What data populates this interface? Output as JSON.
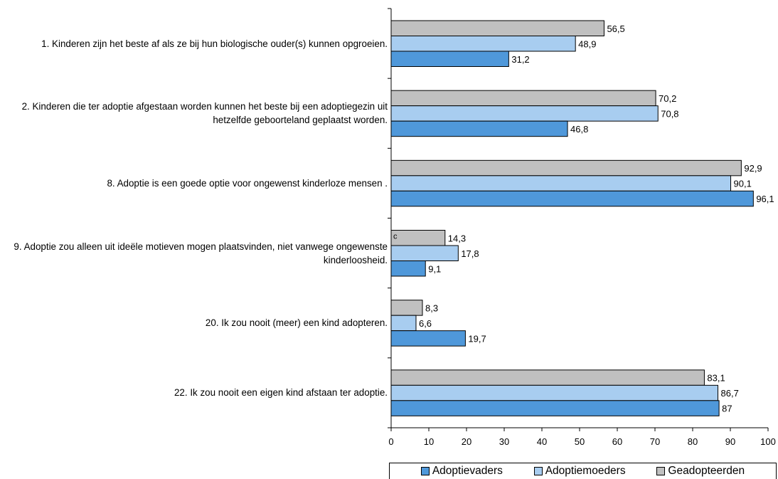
{
  "chart_data": {
    "type": "bar",
    "orientation": "horizontal",
    "categories": [
      "1. Kinderen zijn het beste af als ze bij hun biologische ouder(s) kunnen opgroeien.",
      "2. Kinderen die ter adoptie afgestaan worden kunnen het beste bij een adoptiegezin uit hetzelfde geboorteland geplaatst worden.",
      "8. Adoptie is een goede optie voor ongewenst kinderloze mensen .",
      "9. Adoptie zou alleen uit ideële motieven mogen plaatsvinden, niet vanwege ongewenste kinderloosheid.",
      "20. Ik zou nooit (meer) een kind adopteren.",
      "22. Ik zou nooit een eigen kind afstaan ter adoptie."
    ],
    "series": [
      {
        "name": "Adoptievaders",
        "color": "#4f98da",
        "values": [
          31.2,
          46.8,
          96.1,
          9.1,
          19.7,
          87
        ],
        "labels": [
          "31,2",
          "46,8",
          "96,1",
          "9,1",
          "19,7",
          "87"
        ]
      },
      {
        "name": "Adoptiemoeders",
        "color": "#a8cdf0",
        "values": [
          48.9,
          70.8,
          90.1,
          17.8,
          6.6,
          86.7
        ],
        "labels": [
          "48,9",
          "70,8",
          "90,1",
          "17,8",
          "6,6",
          "86,7"
        ]
      },
      {
        "name": "Geadopteerden",
        "color": "#c0c0c0",
        "values": [
          56.5,
          70.2,
          92.9,
          14.3,
          8.3,
          83.1
        ],
        "labels": [
          "56,5",
          "70,2",
          "92,9",
          "14,3",
          "8,3",
          "83,1"
        ]
      }
    ],
    "xlim": [
      0,
      100
    ],
    "xticks": [
      0,
      10,
      20,
      30,
      40,
      50,
      60,
      70,
      80,
      90,
      100
    ],
    "annotation": "c",
    "legend_position": "bottom",
    "grid": false
  }
}
